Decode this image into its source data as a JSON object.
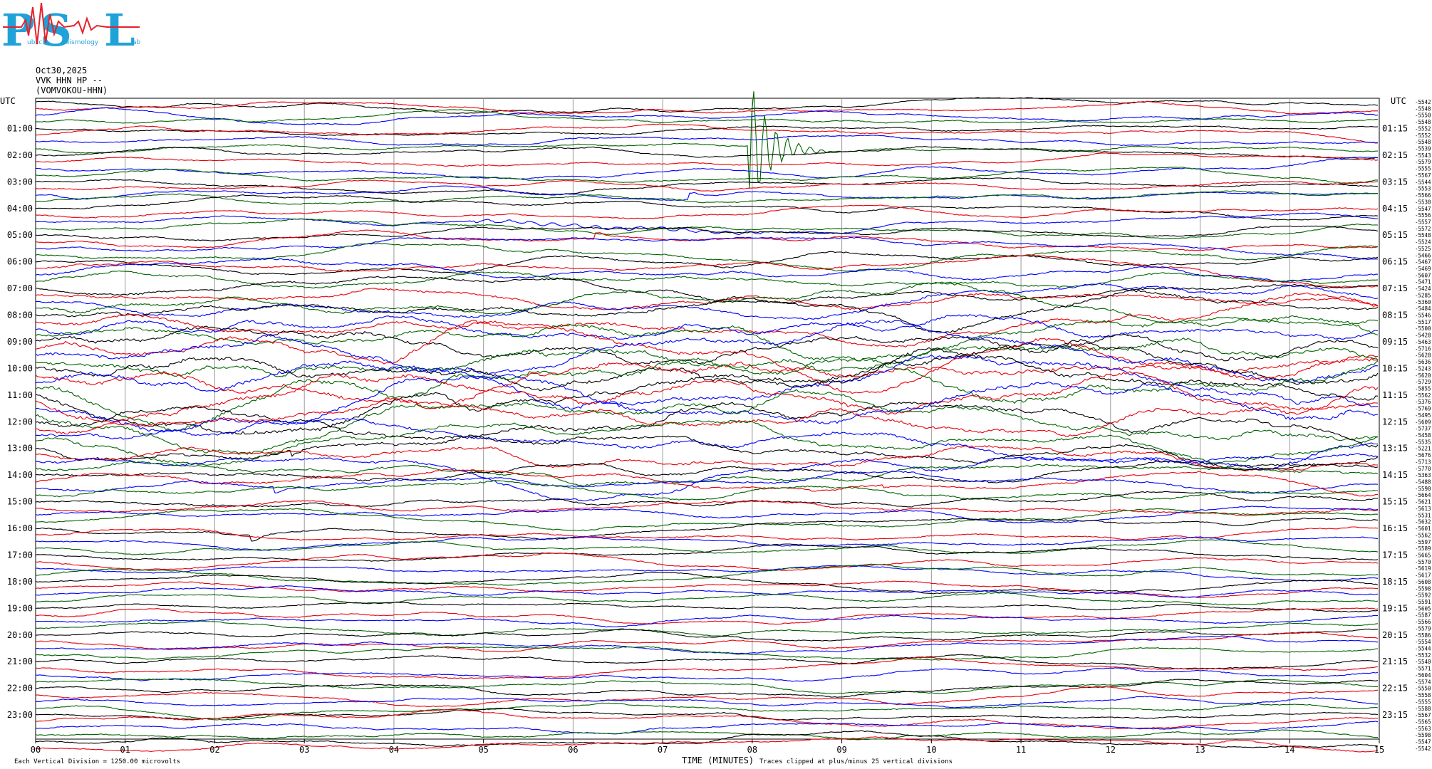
{
  "logo": {
    "letters": [
      "P",
      "S",
      "L"
    ],
    "words": [
      "ublic",
      "eismology",
      "ab"
    ],
    "colors": {
      "primary": "#1fa2d8",
      "signal": "#e8202a"
    }
  },
  "header": {
    "date": "Oct30,2025",
    "station": "VVK HHN HP --",
    "location": "(VOMVOKOU-HHN)"
  },
  "footer": {
    "scale_note": "Each Vertical Division = 1250.00 microvolts",
    "clip_note": "Traces clipped at plus/minus 25 vertical divisions"
  },
  "trace_colors": [
    "#000000",
    "#e8000b",
    "#0000ff",
    "#006400"
  ],
  "chart_data": {
    "type": "line",
    "xlabel": "TIME (MINUTES)",
    "x_ticks": [
      "00",
      "01",
      "02",
      "03",
      "04",
      "05",
      "06",
      "07",
      "08",
      "09",
      "10",
      "11",
      "12",
      "13",
      "14",
      "15"
    ],
    "xlim": [
      0,
      15
    ],
    "left_axis_title": "UTC",
    "right_axis_title": "UTC",
    "left_hours": [
      "01:00",
      "02:00",
      "03:00",
      "04:00",
      "05:00",
      "06:00",
      "07:00",
      "08:00",
      "09:00",
      "10:00",
      "11:00",
      "12:00",
      "13:00",
      "14:00",
      "15:00",
      "16:00",
      "17:00",
      "18:00",
      "19:00",
      "20:00",
      "21:00",
      "22:00",
      "23:00"
    ],
    "right_hours": [
      "01:15",
      "02:15",
      "03:15",
      "04:15",
      "05:15",
      "06:15",
      "07:15",
      "08:15",
      "09:15",
      "10:15",
      "11:15",
      "12:15",
      "13:15",
      "14:15",
      "15:15",
      "16:15",
      "17:15",
      "18:15",
      "19:15",
      "20:15",
      "21:15",
      "22:15",
      "23:15"
    ],
    "trace_offsets": [
      "-5542",
      "-5548",
      "-5550",
      "-5548",
      "-5552",
      "-5552",
      "-5548",
      "-5539",
      "-5543",
      "-5579",
      "-5555",
      "-5567",
      "-5544",
      "-5553",
      "-5566",
      "-5530",
      "-5547",
      "-5556",
      "-5557",
      "-5572",
      "-5548",
      "-5524",
      "-5525",
      "-5466",
      "-5467",
      "-5469",
      "-5607",
      "-5471",
      "-5424",
      "-5285",
      "-5360",
      "-5484",
      "-5546",
      "-5517",
      "-5500",
      "-5428",
      "-5463",
      "-5716",
      "-5628",
      "-5636",
      "-5243",
      "-5620",
      "-5729",
      "-5855",
      "-5562",
      "-5376",
      "-5769",
      "-5495",
      "-5609",
      "-5737",
      "-5458",
      "-5535",
      "-5221",
      "-5676",
      "-5713",
      "-5770",
      "-5363",
      "-5488",
      "-5590",
      "-5664",
      "-5621",
      "-5613",
      "-5531",
      "-5632",
      "-5601",
      "-5562",
      "-5597",
      "-5589",
      "-5665",
      "-5570",
      "-5619",
      "-5617",
      "-5608",
      "-5598",
      "-5592",
      "-5591",
      "-5605",
      "-5587",
      "-5566",
      "-5579",
      "-5586",
      "-5554",
      "-5544",
      "-5532",
      "-5540",
      "-5571",
      "-5604",
      "-5574",
      "-5550",
      "-5558",
      "-5555",
      "-5588",
      "-5567",
      "-5565",
      "-5563",
      "-5598",
      "-5547",
      "-5542"
    ],
    "rows_per_hour": 4,
    "events": [
      {
        "hour": 1.75,
        "minute": 7.95,
        "type": "earthquake",
        "color_index": 2
      },
      {
        "hour": 3.5,
        "minute": 7.35,
        "type": "local",
        "color_index": 3
      },
      {
        "hour": 3.5,
        "minute": 0.3,
        "type": "local",
        "color_index": 2
      },
      {
        "hour": 4.5,
        "minute": 6.5,
        "type": "tremor",
        "color_index": 2
      },
      {
        "hour": 5.25,
        "minute": 6.3,
        "type": "local",
        "color_index": 1
      },
      {
        "hour": 13.0,
        "minute": 2.9,
        "type": "local",
        "color_index": 0
      },
      {
        "hour": 14.25,
        "minute": 9.5,
        "type": "local",
        "color_index": 1
      },
      {
        "hour": 14.5,
        "minute": 2.7,
        "type": "local",
        "color_index": 2
      },
      {
        "hour": 16.0,
        "minute": 2.45,
        "type": "local",
        "color_index": 0
      },
      {
        "hour": 12.75,
        "minute": 13.6,
        "type": "local",
        "color_index": 3
      }
    ]
  }
}
